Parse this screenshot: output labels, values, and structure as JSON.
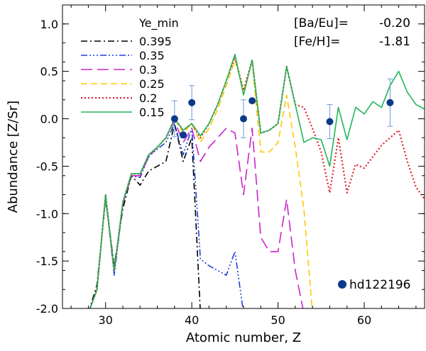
{
  "chart_data": {
    "type": "line",
    "title": "",
    "xlabel": "Atomic number, Z",
    "ylabel": "Abundance [Z/Sr]",
    "xlim": [
      25,
      67
    ],
    "ylim": [
      -2.0,
      1.2
    ],
    "x_ticks": [
      30,
      40,
      50,
      60
    ],
    "y_ticks": [
      -2.0,
      -1.5,
      -1.0,
      -0.5,
      0.0,
      0.5,
      1.0
    ],
    "grid": false,
    "legend_title": "Ye_min",
    "legend_position": "top-left",
    "annotations": [
      {
        "label": "[Ba/Eu]=",
        "value": "-0.20"
      },
      {
        "label": "[Fe/H]=",
        "value": "-1.81"
      }
    ],
    "series": [
      {
        "name": "0.395",
        "color": "#000000",
        "dash": "dashdot",
        "x": [
          28,
          29,
          30,
          31,
          32,
          33,
          34,
          35,
          36,
          37,
          38,
          39,
          40,
          41
        ],
        "y": [
          -2.05,
          -1.75,
          -0.85,
          -1.55,
          -0.95,
          -0.6,
          -0.7,
          -0.55,
          -0.5,
          -0.45,
          -0.05,
          -0.45,
          -0.2,
          -2.05
        ]
      },
      {
        "name": "0.35",
        "color": "#1f3fd6",
        "dash": "dashdotdotdot",
        "x": [
          28,
          29,
          30,
          31,
          32,
          33,
          34,
          35,
          36,
          37,
          38,
          39,
          40,
          41,
          42,
          43,
          44,
          45,
          46
        ],
        "y": [
          -2.05,
          -1.8,
          -0.82,
          -1.65,
          -0.9,
          -0.6,
          -0.62,
          -0.4,
          -0.32,
          -0.25,
          -0.05,
          -0.38,
          -0.1,
          -1.48,
          -1.55,
          -1.6,
          -1.65,
          -1.4,
          -2.05
        ]
      },
      {
        "name": "0.3",
        "color": "#cc22cc",
        "dash": "longdash",
        "x": [
          28,
          29,
          30,
          31,
          32,
          33,
          34,
          35,
          36,
          37,
          38,
          39,
          40,
          41,
          42,
          43,
          44,
          45,
          46,
          47,
          48,
          49,
          50,
          51,
          52,
          53
        ],
        "y": [
          -2.05,
          -1.8,
          -0.82,
          -1.62,
          -0.9,
          -0.6,
          -0.6,
          -0.4,
          -0.3,
          -0.2,
          -0.02,
          -0.25,
          -0.1,
          -0.45,
          -0.3,
          -0.2,
          -0.1,
          -0.15,
          -0.8,
          -0.1,
          -1.25,
          -1.4,
          -1.4,
          -0.85,
          -1.6,
          -2.05
        ]
      },
      {
        "name": "0.25",
        "color": "#ffc800",
        "dash": "dash",
        "x": [
          28,
          29,
          30,
          31,
          32,
          33,
          34,
          35,
          36,
          37,
          38,
          39,
          40,
          41,
          42,
          43,
          44,
          45,
          46,
          47,
          48,
          49,
          50,
          51,
          52,
          53,
          54
        ],
        "y": [
          -2.05,
          -1.8,
          -0.82,
          -1.6,
          -0.88,
          -0.58,
          -0.58,
          -0.38,
          -0.3,
          -0.2,
          0.0,
          -0.15,
          -0.05,
          -0.25,
          -0.1,
          0.1,
          0.35,
          0.62,
          0.3,
          0.6,
          -0.35,
          -0.35,
          -0.25,
          0.25,
          -0.3,
          -0.95,
          -2.05
        ]
      },
      {
        "name": "0.2",
        "color": "#e0202a",
        "dash": "dot",
        "x": [
          28,
          29,
          30,
          31,
          32,
          33,
          34,
          35,
          36,
          37,
          38,
          39,
          40,
          41,
          42,
          43,
          44,
          45,
          46,
          47,
          48,
          49,
          50,
          51,
          52,
          53,
          54,
          55,
          56,
          57,
          58,
          59,
          60,
          61,
          62,
          63,
          64,
          65,
          66,
          67
        ],
        "y": [
          -2.05,
          -1.8,
          -0.8,
          -1.6,
          -0.88,
          -0.58,
          -0.58,
          -0.38,
          -0.3,
          -0.2,
          0.0,
          -0.12,
          -0.05,
          -0.2,
          -0.05,
          0.15,
          0.4,
          0.65,
          0.3,
          0.62,
          -0.15,
          -0.12,
          -0.05,
          0.55,
          0.15,
          0.12,
          -0.1,
          -0.35,
          -0.78,
          -0.2,
          -0.78,
          -0.48,
          -0.52,
          -0.4,
          -0.28,
          -0.2,
          -0.12,
          -0.45,
          -0.72,
          -0.85
        ]
      },
      {
        "name": "0.15",
        "color": "#22b55a",
        "dash": "solid",
        "x": [
          28,
          29,
          30,
          31,
          32,
          33,
          34,
          35,
          36,
          37,
          38,
          39,
          40,
          41,
          42,
          43,
          44,
          45,
          46,
          47,
          48,
          49,
          50,
          51,
          52,
          53,
          54,
          55,
          56,
          57,
          58,
          59,
          60,
          61,
          62,
          63,
          64,
          65,
          66,
          67
        ],
        "y": [
          -2.05,
          -1.8,
          -0.8,
          -1.6,
          -0.88,
          -0.58,
          -0.58,
          -0.38,
          -0.3,
          -0.2,
          0.0,
          -0.12,
          -0.05,
          -0.18,
          -0.05,
          0.15,
          0.4,
          0.68,
          0.25,
          0.62,
          -0.15,
          -0.12,
          -0.05,
          0.55,
          0.15,
          -0.25,
          -0.2,
          -0.22,
          -0.5,
          0.12,
          -0.22,
          0.12,
          0.05,
          0.18,
          0.12,
          0.35,
          0.5,
          0.28,
          0.15,
          0.1
        ]
      }
    ],
    "observed": {
      "name": "hd122196",
      "color": "#0b3a8a",
      "error_color": "#6b9ad8",
      "points": [
        {
          "x": 38,
          "y": 0.0,
          "err": 0.19
        },
        {
          "x": 39,
          "y": -0.17,
          "err": 0.0
        },
        {
          "x": 40,
          "y": 0.17,
          "err": 0.18
        },
        {
          "x": 46,
          "y": 0.0,
          "err": 0.2
        },
        {
          "x": 47,
          "y": 0.19,
          "err": 0.0
        },
        {
          "x": 56,
          "y": -0.03,
          "err": 0.18
        },
        {
          "x": 63,
          "y": 0.17,
          "err": 0.25
        }
      ]
    }
  }
}
